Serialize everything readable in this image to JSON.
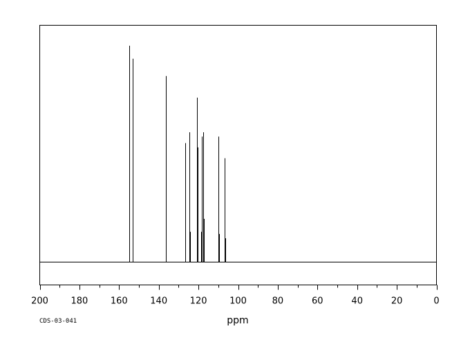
{
  "chart_data": {
    "type": "line",
    "title": "",
    "xlabel": "ppm",
    "ylabel": "",
    "xlim": [
      200,
      0
    ],
    "x_reversed": true,
    "ylim": [
      0,
      1.1
    ],
    "grid": false,
    "legend": "none",
    "ticks": [
      200,
      180,
      160,
      140,
      120,
      100,
      80,
      60,
      40,
      20,
      0
    ],
    "minor_step": 10,
    "baseline": 0,
    "peaks": [
      {
        "ppm": 155.0,
        "height": 1.0
      },
      {
        "ppm": 154.8,
        "height": 0.69
      },
      {
        "ppm": 153.0,
        "height": 0.94
      },
      {
        "ppm": 136.3,
        "height": 0.86
      },
      {
        "ppm": 126.8,
        "height": 0.55
      },
      {
        "ppm": 124.5,
        "height": 0.6
      },
      {
        "ppm": 124.2,
        "height": 0.14
      },
      {
        "ppm": 120.6,
        "height": 0.76
      },
      {
        "ppm": 120.3,
        "height": 0.53
      },
      {
        "ppm": 118.8,
        "height": 0.14
      },
      {
        "ppm": 118.3,
        "height": 0.58
      },
      {
        "ppm": 117.7,
        "height": 0.6
      },
      {
        "ppm": 117.3,
        "height": 0.2
      },
      {
        "ppm": 109.9,
        "height": 0.58
      },
      {
        "ppm": 109.6,
        "height": 0.13
      },
      {
        "ppm": 106.8,
        "height": 0.48
      },
      {
        "ppm": 106.5,
        "height": 0.11
      }
    ]
  },
  "footer": {
    "code": "CDS-03-041"
  },
  "colors": {
    "line": "#000000",
    "background": "#ffffff"
  }
}
